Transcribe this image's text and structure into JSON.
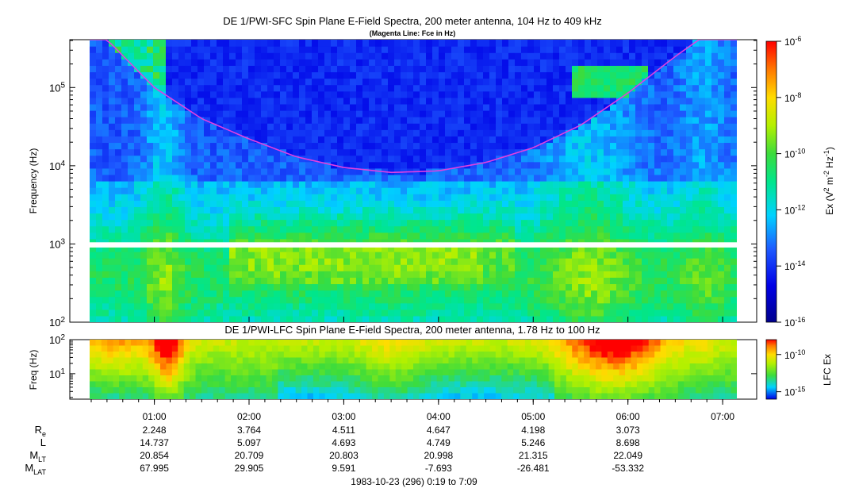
{
  "chart_data": [
    {
      "type": "heatmap",
      "title": "DE 1/PWI-SFC  Spin Plane E-Field Spectra, 200 meter antenna, 104 Hz to 409 kHz",
      "subtitle": "(Magenta Line: Fce in Hz)",
      "ylabel": "Frequency (Hz)",
      "y_scale": "log",
      "ylim_hz": [
        100,
        409000
      ],
      "y_ticks": [
        {
          "value": 100,
          "base": "10",
          "exp": "2"
        },
        {
          "value": 1000,
          "base": "10",
          "exp": "3"
        },
        {
          "value": 10000,
          "base": "10",
          "exp": "4"
        },
        {
          "value": 100000,
          "base": "10",
          "exp": "5"
        }
      ],
      "data_gap_hz": [
        900,
        1050
      ],
      "colorbar": {
        "label_parts": [
          "Ex (V",
          "2",
          " m",
          "-2",
          " Hz",
          "-1",
          ")"
        ],
        "scale": "log",
        "range": [
          1e-16,
          1e-06
        ],
        "ticks": [
          {
            "value": 1e-06,
            "base": "10",
            "exp": "-6"
          },
          {
            "value": 1e-08,
            "base": "10",
            "exp": "-8"
          },
          {
            "value": 1e-10,
            "base": "10",
            "exp": "-10"
          },
          {
            "value": 1e-12,
            "base": "10",
            "exp": "-12"
          },
          {
            "value": 1e-14,
            "base": "10",
            "exp": "-14"
          },
          {
            "value": 1e-16,
            "base": "10",
            "exp": "-16"
          }
        ]
      },
      "fce_line": {
        "color": "#e040e0",
        "points": [
          {
            "t_hours": 0.5,
            "fce_hz": 409000
          },
          {
            "t_hours": 1.0,
            "fce_hz": 100000
          },
          {
            "t_hours": 1.5,
            "fce_hz": 40000
          },
          {
            "t_hours": 2.0,
            "fce_hz": 22000
          },
          {
            "t_hours": 2.5,
            "fce_hz": 13000
          },
          {
            "t_hours": 3.0,
            "fce_hz": 9500
          },
          {
            "t_hours": 3.5,
            "fce_hz": 8200
          },
          {
            "t_hours": 4.0,
            "fce_hz": 8600
          },
          {
            "t_hours": 4.5,
            "fce_hz": 11000
          },
          {
            "t_hours": 5.0,
            "fce_hz": 17000
          },
          {
            "t_hours": 5.5,
            "fce_hz": 33000
          },
          {
            "t_hours": 6.0,
            "fce_hz": 85000
          },
          {
            "t_hours": 6.5,
            "fce_hz": 250000
          },
          {
            "t_hours": 6.75,
            "fce_hz": 409000
          }
        ]
      }
    },
    {
      "type": "heatmap",
      "title": "DE 1/PWI-LFC  Spin Plane E-Field Spectra, 200 meter antenna, 1.78 Hz to 100 Hz",
      "ylabel": "Freq (Hz)",
      "y_scale": "log",
      "ylim_hz": [
        1.78,
        100
      ],
      "y_ticks": [
        {
          "value": 10,
          "base": "10",
          "exp": "1"
        },
        {
          "value": 100,
          "base": "10",
          "exp": "2"
        }
      ],
      "colorbar": {
        "label": "LFC Ex",
        "scale": "log",
        "range": [
          1e-16,
          1e-08
        ],
        "ticks": [
          {
            "value": 1e-10,
            "base": "10",
            "exp": "-10"
          },
          {
            "value": 1e-15,
            "base": "10",
            "exp": "-15"
          }
        ]
      }
    }
  ],
  "time_axis": {
    "start_hours": 0.3167,
    "end_hours": 7.15,
    "ticks": [
      {
        "t_hours": 1,
        "label": "01:00"
      },
      {
        "t_hours": 2,
        "label": "02:00"
      },
      {
        "t_hours": 3,
        "label": "03:00"
      },
      {
        "t_hours": 4,
        "label": "04:00"
      },
      {
        "t_hours": 5,
        "label": "05:00"
      },
      {
        "t_hours": 6,
        "label": "06:00"
      },
      {
        "t_hours": 7,
        "label": "07:00"
      }
    ],
    "footer": "1983-10-23 (296) 0:19 to 7:09"
  },
  "ephemeris": [
    {
      "label": "R",
      "sub": "e",
      "values": [
        "2.248",
        "3.764",
        "4.511",
        "4.647",
        "4.198",
        "3.073"
      ]
    },
    {
      "label": "L",
      "sub": "",
      "values": [
        "14.737",
        "5.097",
        "4.693",
        "4.749",
        "5.246",
        "8.698"
      ]
    },
    {
      "label": "M",
      "sub": "LT",
      "values": [
        "20.854",
        "20.709",
        "20.803",
        "20.998",
        "21.315",
        "22.049"
      ]
    },
    {
      "label": "M",
      "sub": "LAT",
      "values": [
        "67.995",
        "29.905",
        "9.591",
        "-7.693",
        "-26.481",
        "-53.332"
      ]
    }
  ]
}
